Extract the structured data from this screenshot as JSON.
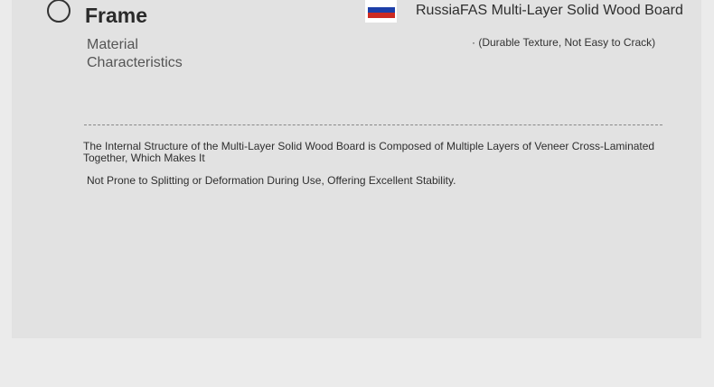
{
  "header": {
    "title": "Frame",
    "subtitle": "Material Characteristics"
  },
  "material": {
    "flag_icon": "russia-flag-icon",
    "name": "RussiaFAS Multi-Layer Solid Wood Board",
    "note": "· (Durable Texture, Not Easy to Crack)"
  },
  "description": {
    "line1": "The Internal Structure of the Multi-Layer Solid Wood Board is Composed of Multiple Layers of Veneer Cross-Laminated Together, Which Makes It",
    "line2": "Not Prone to Splitting or Deformation During Use, Offering Excellent Stability."
  }
}
